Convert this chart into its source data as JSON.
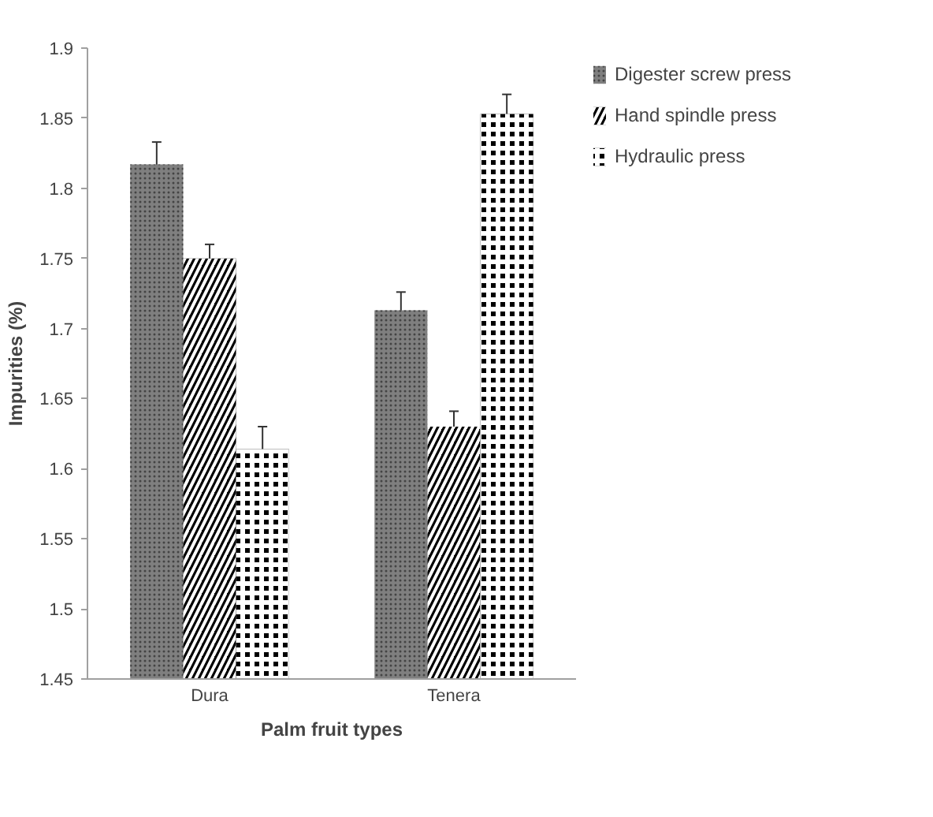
{
  "chart_data": {
    "type": "bar",
    "xlabel": "Palm fruit types",
    "ylabel": "Impurities (%)",
    "categories": [
      "Dura",
      "Tenera"
    ],
    "series": [
      {
        "name": "Digester screw press",
        "color": "#7f7f7f",
        "values": [
          1.817,
          1.713
        ],
        "errors": [
          0.016,
          0.013
        ]
      },
      {
        "name": "Hand spindle press",
        "color": "#000000",
        "values": [
          1.75,
          1.63
        ],
        "errors": [
          0.01,
          0.011
        ]
      },
      {
        "name": "Hydraulic press",
        "color": "#000000",
        "values": [
          1.614,
          1.853
        ],
        "errors": [
          0.016,
          0.014
        ]
      }
    ],
    "ylim": [
      1.45,
      1.9
    ],
    "yticks": [
      1.45,
      1.5,
      1.55,
      1.6,
      1.65,
      1.7,
      1.75,
      1.8,
      1.85,
      1.9
    ],
    "grid": false,
    "legend": "top right"
  }
}
